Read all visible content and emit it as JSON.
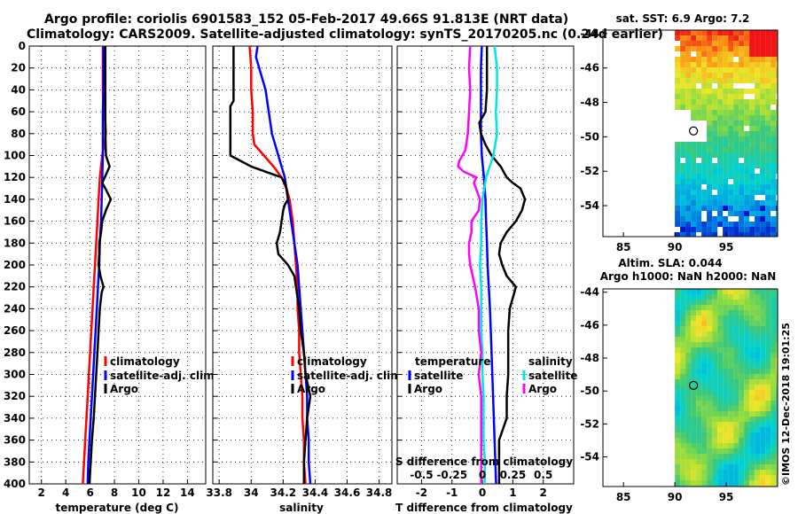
{
  "title": {
    "line1": "Argo profile: coriolis 6901583_152 05-Feb-2017 49.66S 91.813E (NRT data)",
    "line2": "Climatology: CARS2009. Satellite-adjusted climatology: synTS_20170205.nc (0.24d earlier)"
  },
  "watermark": "©IMOS 12-Dec-2018 19:01:25",
  "colors": {
    "climatology": "#ff0000",
    "satellite": "#0000ff",
    "argo": "#000000",
    "sal_sat": "#00e5e5",
    "sal_argo": "#ff00ff"
  },
  "depth_ticks": [
    "0",
    "20",
    "40",
    "60",
    "80",
    "100",
    "120",
    "140",
    "160",
    "180",
    "200",
    "220",
    "240",
    "260",
    "280",
    "300",
    "320",
    "340",
    "360",
    "380",
    "400"
  ],
  "chart_data": [
    {
      "type": "line",
      "title": "temperature panel",
      "xlabel": "temperature (deg C)",
      "ylabel": "",
      "xlim": [
        1,
        15.5
      ],
      "ylim": [
        400,
        0
      ],
      "xticks": [
        "2",
        "4",
        "6",
        "8",
        "10",
        "12",
        "14"
      ],
      "legend": [
        "climatology",
        "satellite-adj. clim.",
        "Argo"
      ],
      "series": [
        {
          "name": "climatology",
          "color": "#ff0000",
          "depth": [
            0,
            20,
            40,
            60,
            70,
            80,
            90,
            100,
            120,
            140,
            160,
            180,
            200,
            220,
            240,
            260,
            280,
            300,
            320,
            340,
            360,
            380,
            400
          ],
          "values": [
            7.05,
            7.05,
            7.05,
            7.1,
            7.25,
            7.3,
            7.15,
            7.0,
            6.8,
            6.7,
            6.6,
            6.5,
            6.4,
            6.3,
            6.2,
            6.1,
            6.0,
            5.9,
            5.8,
            5.7,
            5.6,
            5.5,
            5.4
          ]
        },
        {
          "name": "satellite-adj. clim.",
          "color": "#0000ff",
          "depth": [
            0,
            20,
            40,
            60,
            80,
            100,
            120,
            140,
            160,
            180,
            200,
            220,
            240,
            260,
            280,
            300,
            320,
            340,
            360,
            380,
            400
          ],
          "values": [
            7.1,
            7.1,
            7.1,
            7.05,
            7.05,
            7.05,
            7.0,
            6.95,
            6.9,
            6.8,
            6.75,
            6.65,
            6.55,
            6.45,
            6.35,
            6.25,
            6.15,
            6.05,
            5.95,
            5.85,
            5.8
          ]
        },
        {
          "name": "Argo",
          "color": "#000000",
          "depth": [
            0,
            20,
            40,
            60,
            80,
            100,
            110,
            120,
            125,
            130,
            140,
            150,
            160,
            170,
            180,
            190,
            200,
            210,
            220,
            225,
            240,
            260,
            280,
            300,
            320,
            340,
            360,
            380,
            400
          ],
          "values": [
            7.25,
            7.25,
            7.25,
            7.25,
            7.25,
            7.3,
            7.6,
            7.2,
            7.0,
            7.25,
            7.7,
            7.3,
            7.0,
            6.9,
            6.75,
            6.75,
            6.7,
            6.85,
            7.1,
            6.95,
            6.8,
            6.7,
            6.6,
            6.5,
            6.4,
            6.3,
            6.15,
            6.05,
            5.95
          ]
        }
      ]
    },
    {
      "type": "line",
      "title": "salinity panel",
      "xlabel": "salinity",
      "ylabel": "",
      "xlim": [
        33.76,
        34.88
      ],
      "ylim": [
        400,
        0
      ],
      "xticks": [
        "33.8",
        "34",
        "34.2",
        "34.4",
        "34.6",
        "34.8"
      ],
      "legend": [
        "climatology",
        "satellite-adj. clim.",
        "Argo"
      ],
      "series": [
        {
          "name": "climatology",
          "color": "#ff0000",
          "depth": [
            0,
            20,
            40,
            60,
            80,
            90,
            100,
            110,
            120,
            130,
            140,
            160,
            180,
            200,
            220,
            240,
            260,
            280,
            300,
            320,
            340,
            360,
            380,
            400
          ],
          "values": [
            33.99,
            34.0,
            34.0,
            34.01,
            34.01,
            34.02,
            34.08,
            34.14,
            34.19,
            34.22,
            34.24,
            34.26,
            34.27,
            34.28,
            34.29,
            34.29,
            34.3,
            34.3,
            34.31,
            34.32,
            34.32,
            34.33,
            34.33,
            34.34
          ]
        },
        {
          "name": "satellite-adj. clim.",
          "color": "#0000ff",
          "depth": [
            0,
            10,
            20,
            40,
            60,
            80,
            100,
            120,
            140,
            160,
            180,
            200,
            220,
            240,
            260,
            280,
            300,
            320,
            340,
            360,
            380,
            400
          ],
          "values": [
            34.04,
            34.03,
            34.05,
            34.09,
            34.11,
            34.13,
            34.17,
            34.21,
            34.23,
            34.25,
            34.27,
            34.29,
            34.3,
            34.31,
            34.32,
            34.33,
            34.34,
            34.35,
            34.35,
            34.36,
            34.36,
            34.37
          ]
        },
        {
          "name": "Argo",
          "color": "#000000",
          "depth": [
            0,
            20,
            40,
            50,
            55,
            60,
            70,
            80,
            90,
            100,
            110,
            120,
            125,
            130,
            140,
            145,
            150,
            160,
            170,
            180,
            190,
            200,
            210,
            220,
            230,
            240,
            260,
            280,
            300,
            320,
            340,
            360,
            380,
            400
          ],
          "values": [
            33.89,
            33.89,
            33.89,
            33.89,
            33.87,
            33.87,
            33.87,
            33.87,
            33.87,
            33.87,
            34.0,
            34.19,
            34.21,
            34.22,
            34.23,
            34.21,
            34.2,
            34.19,
            34.18,
            34.16,
            34.17,
            34.23,
            34.27,
            34.28,
            34.29,
            34.3,
            34.31,
            34.33,
            34.34,
            34.37,
            34.35,
            34.34,
            34.33,
            34.33
          ]
        }
      ]
    },
    {
      "type": "line",
      "title": "difference from climatology panel",
      "xlabel": "T difference from climatology",
      "xlabel_top": "S difference from climatology",
      "xlim": [
        -2.8,
        3.0
      ],
      "ylim": [
        400,
        0
      ],
      "xticks": [
        "-2",
        "-1",
        "0",
        "1",
        "2"
      ],
      "xticks_salinity": [
        "-0.5",
        "-0.25",
        "0",
        "0.25",
        "0.5"
      ],
      "legend_temperature_title": "temperature",
      "legend_salinity_title": "salinity",
      "legend": [
        "satellite",
        "Argo",
        "satellite",
        "Argo"
      ],
      "series": [
        {
          "name": "temperature satellite",
          "color": "#0000ff",
          "depth": [
            0,
            20,
            40,
            60,
            80,
            100,
            120,
            140,
            160,
            180,
            200,
            240,
            280,
            320,
            360,
            400
          ],
          "values": [
            -0.02,
            -0.05,
            -0.05,
            -0.05,
            -0.05,
            -0.02,
            0.05,
            0.1,
            0.12,
            0.15,
            0.17,
            0.25,
            0.3,
            0.35,
            0.4,
            0.45
          ]
        },
        {
          "name": "temperature Argo",
          "color": "#000000",
          "depth": [
            0,
            20,
            40,
            60,
            70,
            80,
            90,
            100,
            110,
            120,
            125,
            130,
            140,
            150,
            160,
            170,
            180,
            190,
            200,
            210,
            220,
            225,
            240,
            260,
            280,
            300,
            320,
            340,
            360,
            380,
            400
          ],
          "values": [
            0.15,
            0.15,
            0.15,
            0.1,
            -0.1,
            -0.05,
            0.1,
            0.3,
            0.6,
            0.8,
            1.0,
            1.25,
            1.4,
            1.3,
            1.1,
            0.8,
            0.6,
            0.55,
            0.65,
            0.8,
            1.1,
            1.05,
            0.9,
            0.85,
            0.85,
            0.85,
            0.8,
            0.8,
            0.55,
            0.55,
            0.55
          ]
        },
        {
          "name": "salinity satellite",
          "color": "#00e5e5",
          "depth": [
            0,
            20,
            40,
            60,
            80,
            100,
            110,
            120,
            140,
            160,
            180,
            200,
            220,
            240,
            260,
            280,
            300,
            320,
            340,
            360,
            380,
            400
          ],
          "values": [
            0.1,
            0.12,
            0.12,
            0.11,
            0.12,
            0.09,
            0.06,
            0.03,
            0.0,
            -0.01,
            -0.01,
            -0.02,
            -0.01,
            -0.01,
            -0.01,
            0.0,
            0.0,
            0.01,
            0.01,
            0.01,
            0.02,
            0.02
          ]
        },
        {
          "name": "salinity Argo",
          "color": "#ff00ff",
          "depth": [
            0,
            20,
            40,
            60,
            80,
            95,
            105,
            110,
            115,
            120,
            125,
            140,
            150,
            160,
            170,
            180,
            190,
            200,
            210,
            220,
            240,
            260,
            280,
            300,
            320,
            340,
            360,
            380,
            400
          ],
          "values": [
            -0.1,
            -0.11,
            -0.1,
            -0.11,
            -0.12,
            -0.14,
            -0.19,
            -0.2,
            -0.15,
            -0.05,
            -0.07,
            -0.02,
            -0.03,
            -0.09,
            -0.09,
            -0.11,
            -0.11,
            -0.1,
            -0.08,
            -0.06,
            -0.03,
            -0.03,
            -0.01,
            -0.03,
            -0.01,
            -0.01,
            -0.01,
            -0.01,
            -0.01
          ]
        }
      ]
    },
    {
      "type": "heatmap",
      "title": "sat. SST: 6.9 Argo: 7.2",
      "xlim": [
        83,
        100
      ],
      "ylim": [
        -55.8,
        -43.8
      ],
      "xticks": [
        "85",
        "90",
        "95"
      ],
      "yticks": [
        "-44",
        "-46",
        "-48",
        "-50",
        "-52",
        "-54"
      ],
      "marker": {
        "lon": 91.813,
        "lat": -49.66
      }
    },
    {
      "type": "heatmap",
      "title": "Altim. SLA: 0.044",
      "subtitle": "Argo h1000: NaN h2000: NaN",
      "xlim": [
        83,
        100
      ],
      "ylim": [
        -55.8,
        -43.8
      ],
      "xticks": [
        "85",
        "90",
        "95"
      ],
      "yticks": [
        "-44",
        "-46",
        "-48",
        "-50",
        "-52",
        "-54"
      ],
      "marker": {
        "lon": 91.813,
        "lat": -49.66
      }
    }
  ]
}
